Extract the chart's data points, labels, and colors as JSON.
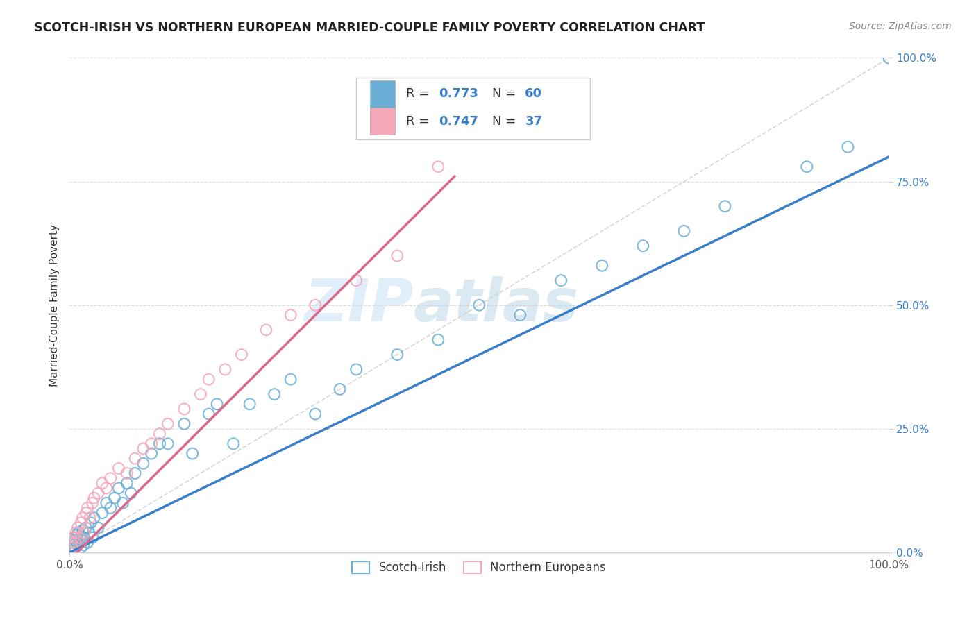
{
  "title": "SCOTCH-IRISH VS NORTHERN EUROPEAN MARRIED-COUPLE FAMILY POVERTY CORRELATION CHART",
  "source": "Source: ZipAtlas.com",
  "ylabel": "Married-Couple Family Poverty",
  "ytick_labels": [
    "0.0%",
    "25.0%",
    "50.0%",
    "75.0%",
    "100.0%"
  ],
  "ytick_values": [
    0,
    25,
    50,
    75,
    100
  ],
  "xtick_labels": [
    "0.0%",
    "100.0%"
  ],
  "xtick_values": [
    0,
    100
  ],
  "color_blue": "#6aaed6",
  "color_pink": "#f4a7b9",
  "color_blue_text": "#3b7ec8",
  "watermark_zip": "ZIP",
  "watermark_atlas": "atlas",
  "label1": "Scotch-Irish",
  "label2": "Northern Europeans",
  "scotch_irish_x": [
    0.2,
    0.3,
    0.4,
    0.5,
    0.6,
    0.7,
    0.8,
    0.9,
    1.0,
    1.1,
    1.2,
    1.3,
    1.4,
    1.5,
    1.6,
    1.7,
    1.8,
    2.0,
    2.2,
    2.4,
    2.6,
    2.8,
    3.0,
    3.5,
    4.0,
    4.5,
    5.0,
    5.5,
    6.0,
    6.5,
    7.0,
    7.5,
    8.0,
    9.0,
    10.0,
    11.0,
    12.0,
    14.0,
    15.0,
    17.0,
    18.0,
    20.0,
    22.0,
    25.0,
    27.0,
    30.0,
    33.0,
    35.0,
    40.0,
    45.0,
    50.0,
    55.0,
    60.0,
    65.0,
    70.0,
    75.0,
    80.0,
    90.0,
    95.0,
    100.0
  ],
  "scotch_irish_y": [
    1.0,
    2.0,
    1.5,
    3.0,
    2.5,
    1.0,
    2.0,
    3.5,
    1.5,
    4.0,
    2.0,
    3.0,
    1.0,
    2.5,
    4.5,
    1.5,
    3.0,
    5.0,
    2.0,
    4.0,
    6.0,
    3.0,
    7.0,
    5.0,
    8.0,
    10.0,
    9.0,
    11.0,
    13.0,
    10.0,
    14.0,
    12.0,
    16.0,
    18.0,
    20.0,
    22.0,
    22.0,
    26.0,
    20.0,
    28.0,
    30.0,
    22.0,
    30.0,
    32.0,
    35.0,
    28.0,
    33.0,
    37.0,
    40.0,
    43.0,
    50.0,
    48.0,
    55.0,
    58.0,
    62.0,
    65.0,
    70.0,
    78.0,
    82.0,
    100.0
  ],
  "northern_european_x": [
    0.2,
    0.3,
    0.5,
    0.7,
    0.8,
    1.0,
    1.2,
    1.4,
    1.6,
    1.8,
    2.0,
    2.2,
    2.5,
    2.8,
    3.0,
    3.5,
    4.0,
    4.5,
    5.0,
    6.0,
    7.0,
    8.0,
    9.0,
    10.0,
    11.0,
    12.0,
    14.0,
    16.0,
    17.0,
    19.0,
    21.0,
    24.0,
    27.0,
    30.0,
    35.0,
    40.0,
    45.0
  ],
  "northern_european_y": [
    2.0,
    1.0,
    3.0,
    2.0,
    4.0,
    5.0,
    3.0,
    6.0,
    7.0,
    4.0,
    8.0,
    9.0,
    7.0,
    10.0,
    11.0,
    12.0,
    14.0,
    13.0,
    15.0,
    17.0,
    16.0,
    19.0,
    21.0,
    22.0,
    24.0,
    26.0,
    29.0,
    32.0,
    35.0,
    37.0,
    40.0,
    45.0,
    48.0,
    50.0,
    55.0,
    60.0,
    78.0
  ],
  "background_color": "#ffffff",
  "grid_color": "#dddddd",
  "diagonal_color": "#cccccc",
  "si_line_slope": 0.8,
  "si_line_intercept": 0.0,
  "ne_line_slope": 1.65,
  "ne_line_intercept": -1.5
}
